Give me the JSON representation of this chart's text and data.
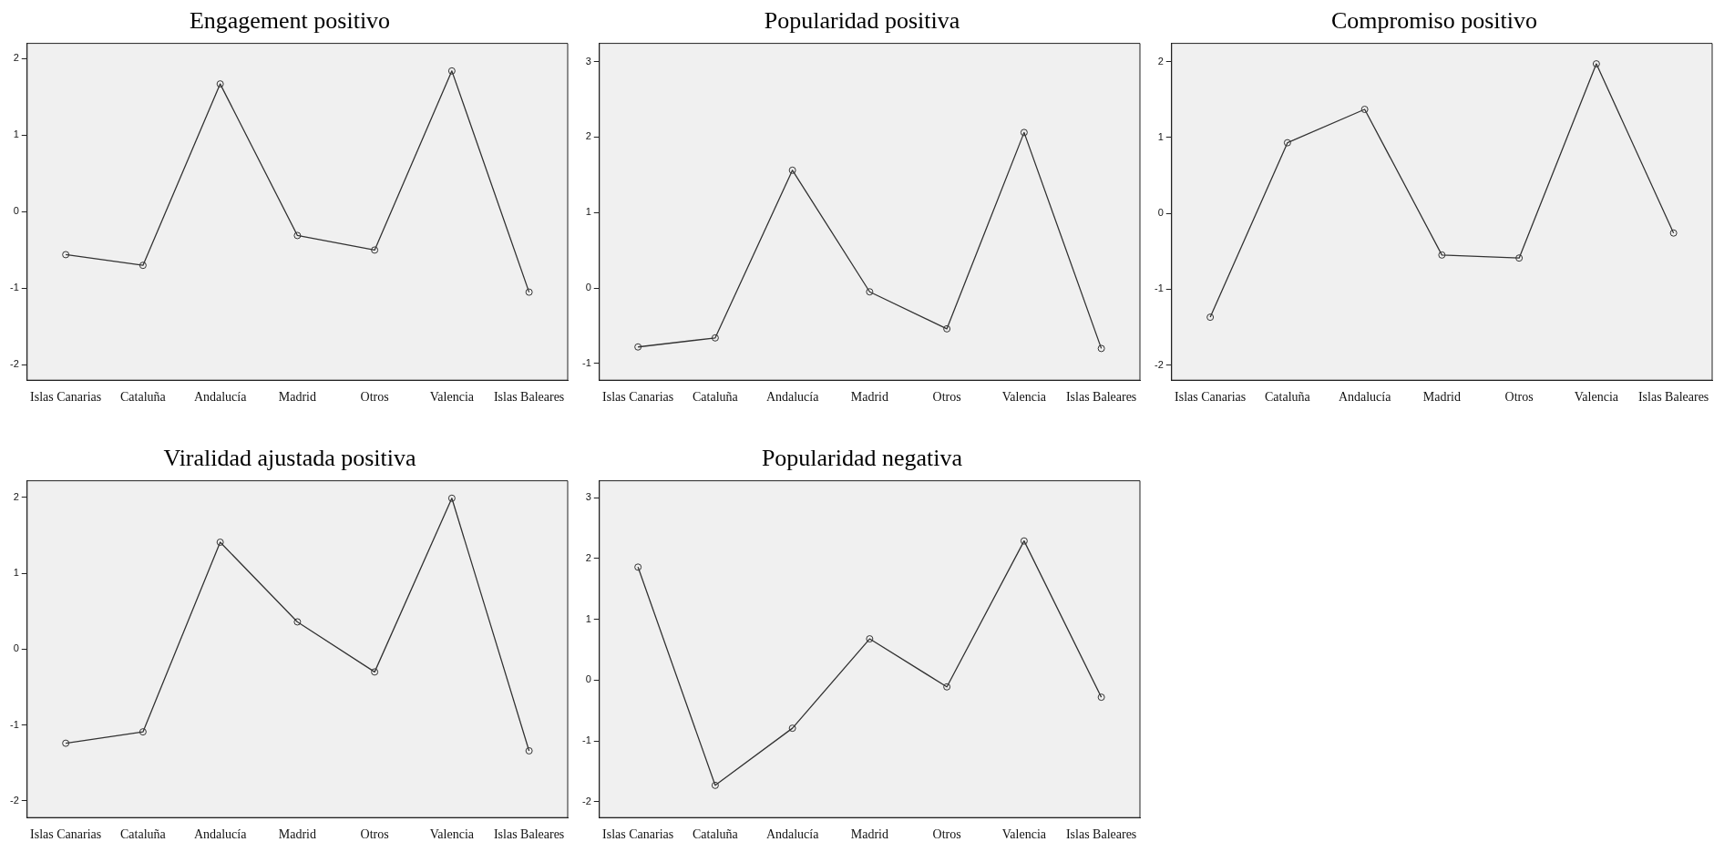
{
  "chart_data": [
    {
      "type": "line",
      "title": "Engagement positivo",
      "categories": [
        "Islas Canarias",
        "Cataluña",
        "Andalucía",
        "Madrid",
        "Otros",
        "Valencia",
        "Islas Baleares"
      ],
      "series": [
        {
          "color": "#333333",
          "values": [
            -0.56,
            -0.7,
            1.67,
            -0.31,
            -0.5,
            1.84,
            -1.05
          ]
        }
      ],
      "ylim": [
        -2.2,
        2.2
      ],
      "yticks": [
        -2,
        -1,
        0,
        1,
        2
      ],
      "grid": false,
      "legend": false,
      "marker": "circle",
      "line_style": "solid"
    },
    {
      "type": "line",
      "title": "Popularidad positiva",
      "categories": [
        "Islas Canarias",
        "Cataluña",
        "Andalucía",
        "Madrid",
        "Otros",
        "Valencia",
        "Islas Baleares"
      ],
      "series": [
        {
          "color": "#333333",
          "values": [
            -0.78,
            -0.66,
            1.56,
            -0.05,
            -0.54,
            2.06,
            -0.8
          ]
        }
      ],
      "ylim": [
        -1.22,
        3.24
      ],
      "yticks": [
        -1,
        0,
        1,
        2,
        3
      ],
      "grid": false,
      "legend": false,
      "marker": "circle",
      "line_style": "solid"
    },
    {
      "type": "line",
      "title": "Compromiso positivo",
      "categories": [
        "Islas Canarias",
        "Cataluña",
        "Andalucía",
        "Madrid",
        "Otros",
        "Valencia",
        "Islas Baleares"
      ],
      "series": [
        {
          "color": "#333333",
          "values": [
            -1.37,
            0.93,
            1.37,
            -0.55,
            -0.59,
            1.97,
            -0.26
          ]
        }
      ],
      "ylim": [
        -2.2,
        2.24
      ],
      "yticks": [
        -2,
        -1,
        0,
        1,
        2
      ],
      "grid": false,
      "legend": false,
      "marker": "circle",
      "line_style": "solid"
    },
    {
      "type": "line",
      "title": "Viralidad ajustada positiva",
      "categories": [
        "Islas Canarias",
        "Cataluña",
        "Andalucía",
        "Madrid",
        "Otros",
        "Valencia",
        "Islas Baleares"
      ],
      "series": [
        {
          "color": "#333333",
          "values": [
            -1.24,
            -1.09,
            1.41,
            0.36,
            -0.3,
            1.99,
            -1.34
          ]
        }
      ],
      "ylim": [
        -2.22,
        2.22
      ],
      "yticks": [
        -2,
        -1,
        0,
        1,
        2
      ],
      "grid": false,
      "legend": false,
      "marker": "circle",
      "line_style": "solid"
    },
    {
      "type": "line",
      "title": "Popularidad negativa",
      "categories": [
        "Islas Canarias",
        "Cataluña",
        "Andalucía",
        "Madrid",
        "Otros",
        "Valencia",
        "Islas Baleares"
      ],
      "series": [
        {
          "color": "#333333",
          "values": [
            1.86,
            -1.73,
            -0.79,
            0.68,
            -0.11,
            2.29,
            -0.28
          ]
        }
      ],
      "ylim": [
        -2.26,
        3.28
      ],
      "yticks": [
        -2,
        -1,
        0,
        1,
        2,
        3
      ],
      "grid": false,
      "legend": false,
      "marker": "circle",
      "line_style": "solid"
    }
  ]
}
